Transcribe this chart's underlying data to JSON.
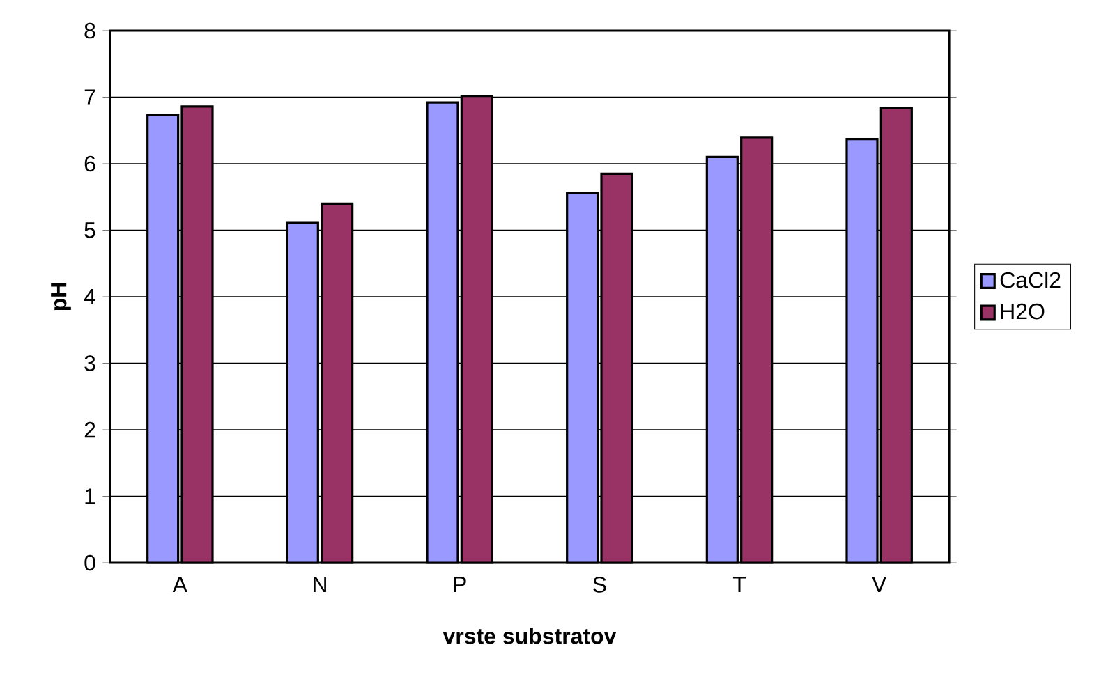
{
  "chart_data": {
    "type": "bar",
    "xlabel": "vrste substratov",
    "ylabel": "pH",
    "categories": [
      "A",
      "N",
      "P",
      "S",
      "T",
      "V"
    ],
    "series": [
      {
        "name": "CaCl2",
        "color": "#9999ff",
        "values": [
          6.73,
          5.11,
          6.92,
          5.56,
          6.1,
          6.37
        ]
      },
      {
        "name": "H2O",
        "color": "#993366",
        "values": [
          6.86,
          5.4,
          7.02,
          5.85,
          6.4,
          6.84
        ]
      }
    ],
    "ylim": [
      0,
      8
    ],
    "yticks": [
      0,
      1,
      2,
      3,
      4,
      5,
      6,
      7,
      8
    ],
    "grid": "y",
    "legend": "right"
  }
}
